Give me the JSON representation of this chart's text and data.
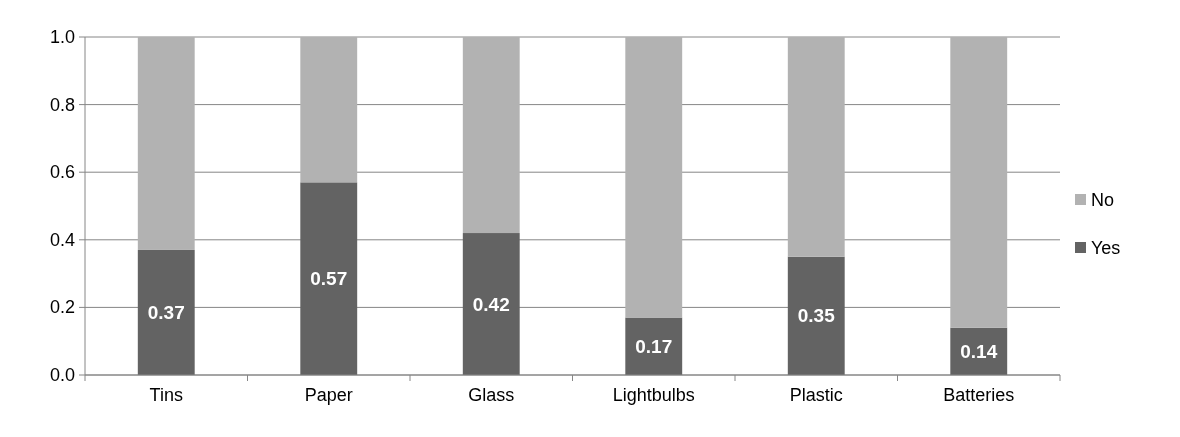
{
  "chart_data": {
    "type": "bar",
    "stacked": true,
    "categories": [
      "Tins",
      "Paper",
      "Glass",
      "Lightbulbs",
      "Plastic",
      "Batteries"
    ],
    "series": [
      {
        "name": "Yes",
        "color": "#636363",
        "values": [
          0.37,
          0.57,
          0.42,
          0.17,
          0.35,
          0.14
        ],
        "value_labels": [
          "0.37",
          "0.57",
          "0.42",
          "0.17",
          "0.35",
          "0.14"
        ]
      },
      {
        "name": "No",
        "color": "#b2b2b2",
        "values": [
          0.63,
          0.43,
          0.58,
          0.83,
          0.65,
          0.86
        ]
      }
    ],
    "ylim": [
      0,
      1
    ],
    "yticks": [
      {
        "value": 0,
        "label": "0.0"
      },
      {
        "value": 0.2,
        "label": "0.2"
      },
      {
        "value": 0.4,
        "label": "0.4"
      },
      {
        "value": 0.6,
        "label": "0.6"
      },
      {
        "value": 0.8,
        "label": "0.8"
      },
      {
        "value": 1,
        "label": "1.0"
      }
    ],
    "grid": "y",
    "legend": "right"
  }
}
